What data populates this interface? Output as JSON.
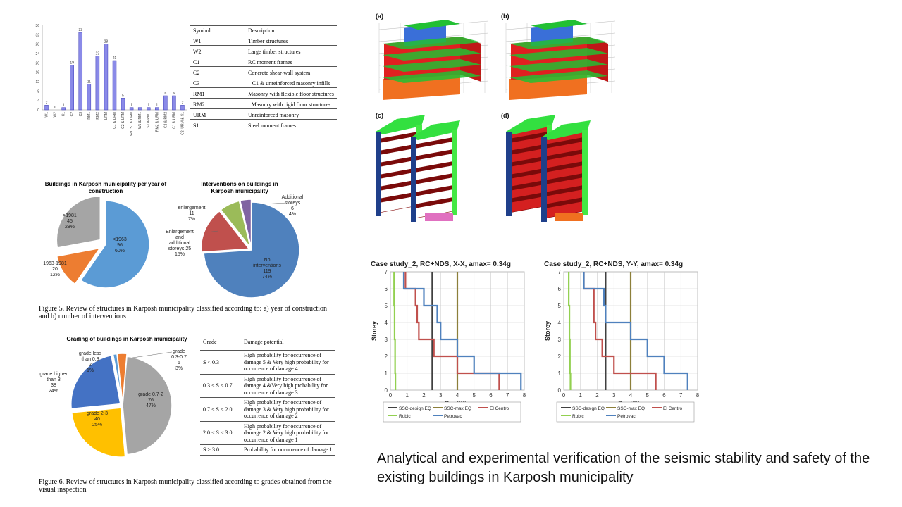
{
  "structure_chart": {
    "type": "bar",
    "categories": [
      "W1",
      "W2",
      "C1",
      "C2",
      "C3",
      "RM1",
      "RM2",
      "URM",
      "C1 & URM",
      "C2 & URM",
      "W1, S1 & URM",
      "W1 & RM1",
      "S1 & RM1",
      "RM2 & URM",
      "C2 & RM2",
      "C1 & URM",
      "C2, URM & S1"
    ],
    "values": [
      2,
      0,
      1,
      19,
      33,
      11,
      23,
      28,
      21,
      5,
      1,
      1,
      1,
      1,
      6,
      6,
      2
    ],
    "yticks": [
      "0",
      "4",
      "8",
      "12",
      "16",
      "20",
      "24",
      "28",
      "32",
      "36"
    ],
    "ylim": [
      0,
      36
    ]
  },
  "symbol_table": {
    "header": {
      "symbol": "Symbol",
      "description": "Description"
    },
    "rows": [
      {
        "symbol": "W1",
        "description": "Timber structures"
      },
      {
        "symbol": "W2",
        "description": "Large timber structures"
      },
      {
        "symbol": "C1",
        "description": "RC moment frames"
      },
      {
        "symbol": "C2",
        "description": "Concrete shear-wall system"
      },
      {
        "symbol": "C3",
        "description": "C1 & unreinforced masonry infills"
      },
      {
        "symbol": "RM1",
        "description": "Masonry with flexible floor structures"
      },
      {
        "symbol": "RM2",
        "description": "Masonry with rigid floor structures"
      },
      {
        "symbol": "URM",
        "description": "Unreinforced masonry"
      },
      {
        "symbol": "S1",
        "description": "Steel moment frames"
      }
    ]
  },
  "pie_year": {
    "title": "Buildings in Karposh municipality  per year of construction",
    "slices": [
      {
        "label": "<1963",
        "value": 96,
        "pct": "60%",
        "color": "#5b9bd5"
      },
      {
        "label": "1963-1981",
        "value": 20,
        "pct": "12%",
        "color": "#ed7d31"
      },
      {
        "label": ">1981",
        "value": 45,
        "pct": "28%",
        "color": "#a5a5a5"
      }
    ]
  },
  "pie_interventions": {
    "title": "Interventions on buildings in Karposh municipality",
    "slices": [
      {
        "label": "No interventions",
        "value": 119,
        "pct": "74%",
        "color": "#4f81bd"
      },
      {
        "label": "Enlargement and additional storeys",
        "value": 25,
        "pct": "15%",
        "color": "#c0504d"
      },
      {
        "label": "enlargement",
        "value": 11,
        "pct": "7%",
        "color": "#9bbb59"
      },
      {
        "label": "Additional storeys",
        "value": 6,
        "pct": "4%",
        "color": "#8064a2"
      }
    ]
  },
  "figure5_caption": "Figure 5. Review of structures in Karposh municipality classified according to: a) year of construction and b) number of interventions",
  "pie_grading": {
    "title": "Grading of buildings in Karposh municipality",
    "slices": [
      {
        "label": "grade 0.7-2",
        "value": 76,
        "pct": "47%",
        "color": "#a5a5a5"
      },
      {
        "label": "grade 2-3",
        "value": 40,
        "pct": "25%",
        "color": "#ffc000"
      },
      {
        "label": "grade higher than 3",
        "value": 38,
        "pct": "24%",
        "color": "#4472c4"
      },
      {
        "label": "grade less than 0.3",
        "value": 2,
        "pct": "1%",
        "color": "#5b9bd5"
      },
      {
        "label": "grade 0.3-0.7",
        "value": 5,
        "pct": "3%",
        "color": "#ed7d31"
      }
    ]
  },
  "grade_table": {
    "header": {
      "grade": "Grade",
      "damage": "Damage potential"
    },
    "rows": [
      {
        "grade": "S < 0.3",
        "damage": "High probability for occurrence of damage 5 & Very high probability for occurrence of damage 4"
      },
      {
        "grade": "0.3 < S < 0.7",
        "damage": "High probability for occurrence of damage 4 &Very high probability for occurrence of damage 3"
      },
      {
        "grade": "0.7 < S < 2.0",
        "damage": "High probability for occurrence of damage 3 & Very high probability for occurrence of damage 2"
      },
      {
        "grade": "2.0 < S < 3.0",
        "damage": "High probability for occurrence of damage 2 & Very high probability for occurrence of damage 1"
      },
      {
        "grade": "S > 3.0",
        "damage": "Probability for occurrence of damage 1"
      }
    ]
  },
  "figure6_caption": "Figure 6. Review of structures in Karposh municipality classified according to grades obtained from the visual inspection",
  "model_panels": [
    "(a)",
    "(b)",
    "(c)",
    "(d)"
  ],
  "ductility_charts": [
    {
      "title": "Case study_2, RC+NDS, X-X,  amax= 0.34g",
      "xlabel": "Ductility",
      "ylabel": "Storey",
      "xlim": [
        0,
        8
      ],
      "ylim": [
        0,
        7
      ],
      "series": [
        {
          "name": "SSC-design EQ",
          "color": "#404040",
          "points": [
            [
              2.5,
              0
            ],
            [
              2.5,
              7
            ]
          ]
        },
        {
          "name": "SSC-max EQ",
          "color": "#8c7f3a",
          "points": [
            [
              4,
              0
            ],
            [
              4,
              7
            ]
          ]
        },
        {
          "name": "El Centro",
          "color": "#c0504d",
          "points": [
            [
              6.5,
              0
            ],
            [
              6.5,
              1
            ],
            [
              4,
              1
            ],
            [
              4,
              2
            ],
            [
              2.6,
              2
            ],
            [
              2.6,
              3
            ],
            [
              1.7,
              3
            ],
            [
              1.7,
              4
            ],
            [
              1.6,
              4
            ],
            [
              1.6,
              5
            ],
            [
              1.5,
              5
            ],
            [
              1.5,
              6
            ],
            [
              0.9,
              6
            ],
            [
              0.9,
              7
            ]
          ]
        },
        {
          "name": "Robic",
          "color": "#92d050",
          "points": [
            [
              0.3,
              0
            ],
            [
              0.3,
              1
            ],
            [
              0.28,
              1
            ],
            [
              0.28,
              3
            ],
            [
              0.25,
              3
            ],
            [
              0.25,
              5
            ],
            [
              0.22,
              5
            ],
            [
              0.22,
              7
            ]
          ]
        },
        {
          "name": "Petrovac",
          "color": "#4f81bd",
          "points": [
            [
              7.8,
              0
            ],
            [
              7.8,
              1
            ],
            [
              5,
              1
            ],
            [
              5,
              2
            ],
            [
              4,
              2
            ],
            [
              4,
              3
            ],
            [
              3,
              3
            ],
            [
              3,
              4
            ],
            [
              2.8,
              4
            ],
            [
              2.8,
              5
            ],
            [
              2,
              5
            ],
            [
              2,
              6
            ],
            [
              0.8,
              6
            ],
            [
              0.8,
              7
            ]
          ]
        }
      ]
    },
    {
      "title": "Case study_2, RC+NDS, Y-Y,  amax= 0.34g",
      "xlabel": "Ductility",
      "ylabel": "Storey",
      "xlim": [
        0,
        8
      ],
      "ylim": [
        0,
        7
      ],
      "series": [
        {
          "name": "SSC-design EQ",
          "color": "#404040",
          "points": [
            [
              2.5,
              0
            ],
            [
              2.5,
              7
            ]
          ]
        },
        {
          "name": "SSC-max EQ",
          "color": "#8c7f3a",
          "points": [
            [
              4,
              0
            ],
            [
              4,
              7
            ]
          ]
        },
        {
          "name": "El Centro",
          "color": "#c0504d",
          "points": [
            [
              5.5,
              0
            ],
            [
              5.5,
              1
            ],
            [
              3,
              1
            ],
            [
              3,
              2
            ],
            [
              2.3,
              2
            ],
            [
              2.3,
              3
            ],
            [
              1.9,
              3
            ],
            [
              1.9,
              4
            ],
            [
              1.8,
              4
            ],
            [
              1.8,
              5
            ],
            [
              1.8,
              5
            ],
            [
              1.8,
              6
            ],
            [
              1.2,
              6
            ],
            [
              1.2,
              7
            ]
          ]
        },
        {
          "name": "Robic",
          "color": "#92d050",
          "points": [
            [
              0.4,
              0
            ],
            [
              0.4,
              1
            ],
            [
              0.37,
              1
            ],
            [
              0.37,
              3
            ],
            [
              0.34,
              3
            ],
            [
              0.34,
              5
            ],
            [
              0.3,
              5
            ],
            [
              0.3,
              7
            ]
          ]
        },
        {
          "name": "Petrovac",
          "color": "#4f81bd",
          "points": [
            [
              7.4,
              0
            ],
            [
              7.4,
              1
            ],
            [
              6,
              1
            ],
            [
              6,
              2
            ],
            [
              5,
              2
            ],
            [
              5,
              3
            ],
            [
              4,
              3
            ],
            [
              4,
              4
            ],
            [
              2.5,
              4
            ],
            [
              2.5,
              5
            ],
            [
              2.4,
              5
            ],
            [
              2.4,
              6
            ],
            [
              1.2,
              6
            ],
            [
              1.2,
              7
            ]
          ]
        }
      ]
    }
  ],
  "slide_title": "Analytical and experimental verification of the seismic stability and safety of the existing buildings in Karposh municipality"
}
